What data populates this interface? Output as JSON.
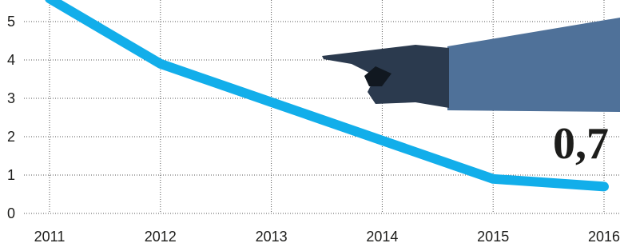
{
  "chart_data": {
    "type": "line",
    "categories": [
      "2011",
      "2012",
      "2013",
      "2014",
      "2015",
      "2016"
    ],
    "values": [
      5.6,
      3.9,
      2.9,
      1.9,
      0.9,
      0.7
    ],
    "value_labels": [
      null,
      null,
      null,
      null,
      null,
      "0,7"
    ],
    "color": "#12aeea",
    "ylim": [
      0,
      5.5
    ],
    "yticks": [
      0,
      1,
      2,
      3,
      4,
      5
    ],
    "grid": true
  }
}
